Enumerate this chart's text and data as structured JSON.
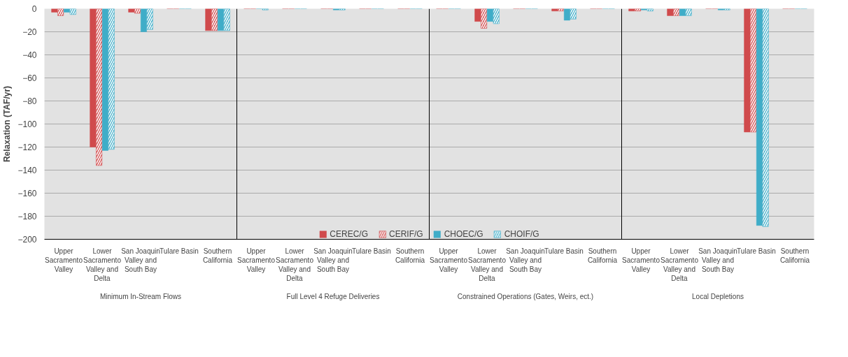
{
  "chart_data": {
    "type": "bar",
    "ylabel": "Relaxation (TAF/yr)",
    "categories": [
      "Upper Sacramento Valley",
      "Lower Sacramento Valley and Delta",
      "San Joaquin Valley and South Bay",
      "Tulare Basin",
      "Southern California",
      "Upper Sacramento Valley",
      "Lower Sacramento Valley and Delta",
      "San Joaquin Valley and South Bay",
      "Tulare Basin",
      "Southern California",
      "Upper Sacramento Valley",
      "Lower Sacramento Valley and Delta",
      "San Joaquin Valley and South Bay",
      "Tulare Basin",
      "Southern California",
      "Upper Sacramento Valley",
      "Lower Sacramento Valley and Delta",
      "San Joaquin Valley and South Bay",
      "Tulare Basin",
      "Southern California"
    ],
    "annotations": [
      "Minimum In-Stream Flows",
      "Full Level 4 Refuge Deliveries",
      "Constrained Operations (Gates, Weirs, ect.)",
      "Local Depletions"
    ],
    "series": [
      {
        "name": "CEREC/G",
        "color": "#d04a4c",
        "values": [
          -3,
          -120,
          -3,
          0,
          -19,
          0,
          0,
          0,
          0,
          0,
          0,
          -11,
          0,
          -2,
          0,
          -2,
          -6,
          0,
          -107,
          0
        ]
      },
      {
        "name": "CERIF/G",
        "color": "#d04a4c",
        "values": [
          -6,
          -136,
          -4,
          0,
          -19,
          0,
          0,
          0,
          0,
          0,
          0,
          -17,
          0,
          -2,
          0,
          -2,
          -6,
          0,
          -107,
          0
        ]
      },
      {
        "name": "CHOEC/G",
        "color": "#3fadc8",
        "values": [
          -3,
          -123,
          -20,
          0,
          -19,
          0,
          0,
          -1,
          0,
          0,
          0,
          -11,
          0,
          -10,
          0,
          -1,
          -6,
          -1,
          -188,
          0
        ]
      },
      {
        "name": "CHOIF/G",
        "color": "#3fadc8",
        "values": [
          -5,
          -122,
          -18,
          0,
          -19,
          -1,
          0,
          -1,
          0,
          0,
          0,
          -13,
          0,
          -9,
          0,
          -2,
          -6,
          -1,
          -189,
          0
        ]
      }
    ],
    "ylim": [
      -200,
      0
    ],
    "yticks": [
      -200,
      -180,
      -160,
      -140,
      -120,
      -100,
      -80,
      -60,
      -40,
      -20,
      0
    ],
    "grid": "y",
    "legend": "bottom"
  }
}
